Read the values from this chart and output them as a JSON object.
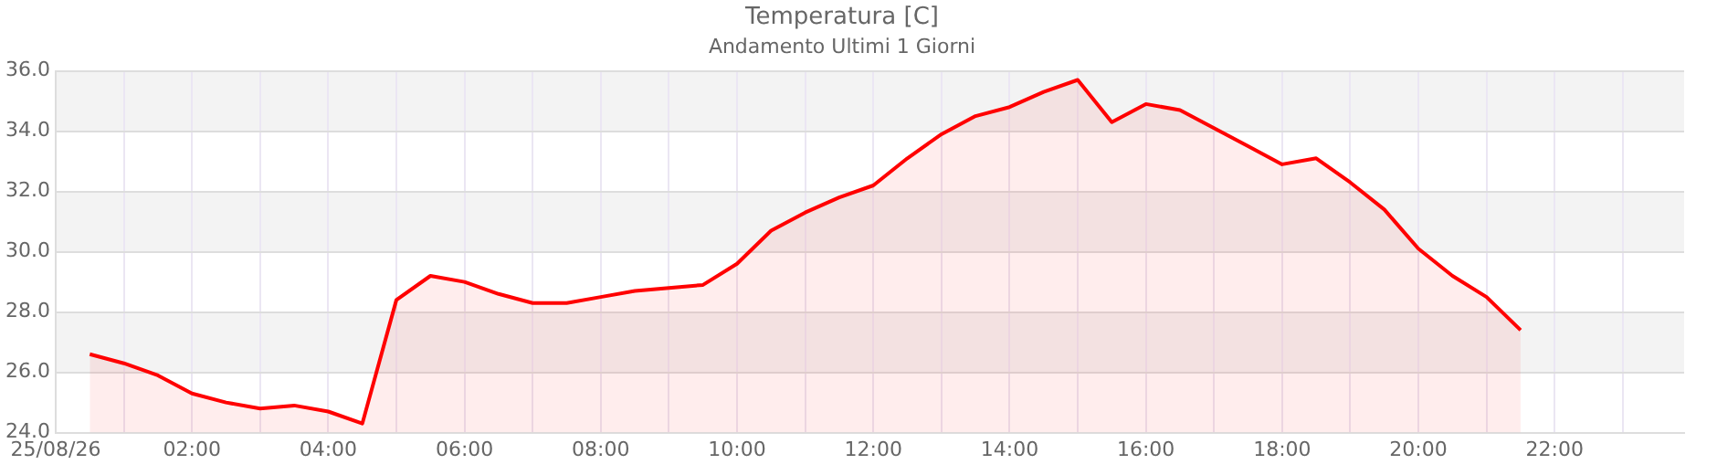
{
  "chart_data": {
    "type": "area",
    "title": "Temperatura [C]",
    "subtitle": "Andamento Ultimi 1 Giorni",
    "x": [
      0.5,
      1,
      1.5,
      2,
      2.5,
      3,
      3.5,
      4,
      4.5,
      5,
      5.5,
      6,
      6.5,
      7,
      7.5,
      8,
      8.5,
      9,
      9.5,
      10,
      10.5,
      11,
      11.5,
      12,
      12.5,
      13,
      13.5,
      14,
      14.5,
      15,
      15.5,
      16,
      16.5,
      17,
      17.5,
      18,
      18.5,
      19,
      19.5,
      20,
      20.5,
      21,
      21.5
    ],
    "series": [
      {
        "color": "#ff0000",
        "values": [
          26.6,
          26.3,
          25.9,
          25.3,
          25.0,
          24.8,
          24.9,
          24.7,
          24.3,
          28.4,
          29.2,
          29.0,
          28.6,
          28.3,
          28.3,
          28.5,
          28.7,
          28.8,
          28.9,
          29.6,
          30.7,
          31.3,
          31.8,
          32.2,
          33.1,
          33.9,
          34.5,
          34.8,
          35.3,
          35.7,
          34.3,
          34.9,
          34.7,
          34.1,
          33.5,
          32.9,
          33.1,
          32.3,
          31.4,
          30.1,
          29.2,
          28.5,
          27.4
        ]
      }
    ],
    "xlim": [
      0,
      23.9
    ],
    "xticks": [
      {
        "value": 0,
        "label": "25/08/26"
      },
      {
        "value": 1,
        "label": null
      },
      {
        "value": 2,
        "label": "02:00"
      },
      {
        "value": 3,
        "label": null
      },
      {
        "value": 4,
        "label": "04:00"
      },
      {
        "value": 5,
        "label": null
      },
      {
        "value": 6,
        "label": "06:00"
      },
      {
        "value": 7,
        "label": null
      },
      {
        "value": 8,
        "label": "08:00"
      },
      {
        "value": 9,
        "label": null
      },
      {
        "value": 10,
        "label": "10:00"
      },
      {
        "value": 11,
        "label": null
      },
      {
        "value": 12,
        "label": "12:00"
      },
      {
        "value": 13,
        "label": null
      },
      {
        "value": 14,
        "label": "14:00"
      },
      {
        "value": 15,
        "label": null
      },
      {
        "value": 16,
        "label": "16:00"
      },
      {
        "value": 17,
        "label": null
      },
      {
        "value": 18,
        "label": "18:00"
      },
      {
        "value": 19,
        "label": null
      },
      {
        "value": 20,
        "label": "20:00"
      },
      {
        "value": 21,
        "label": null
      },
      {
        "value": 22,
        "label": "22:00"
      },
      {
        "value": 23,
        "label": null
      }
    ],
    "ylim": [
      24,
      36
    ],
    "yticks": [
      {
        "value": 24,
        "label": "24.0"
      },
      {
        "value": 26,
        "label": "26.0"
      },
      {
        "value": 28,
        "label": "28.0"
      },
      {
        "value": 30,
        "label": "30.0"
      },
      {
        "value": 32,
        "label": "32.0"
      },
      {
        "value": 34,
        "label": "34.0"
      },
      {
        "value": 36,
        "label": "36.0"
      }
    ],
    "grid": true,
    "legend": false
  }
}
